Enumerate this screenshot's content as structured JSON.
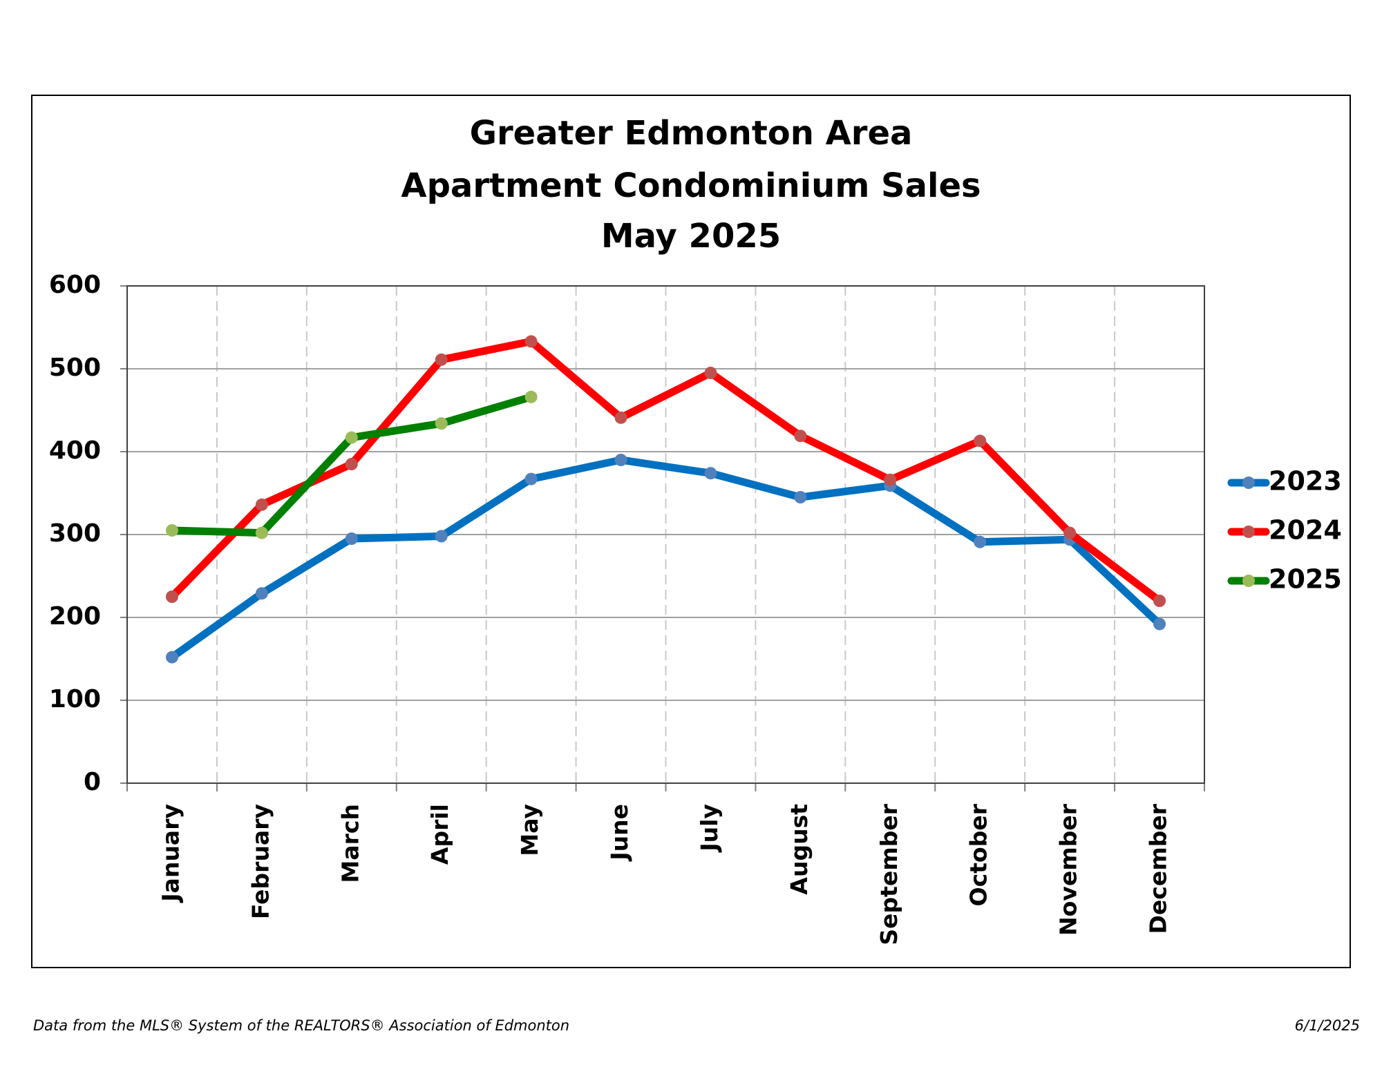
{
  "chart_data": {
    "type": "line",
    "title": [
      "Greater Edmonton Area",
      "Apartment Condominium Sales",
      "May 2025"
    ],
    "categories": [
      "January",
      "February",
      "March",
      "April",
      "May",
      "June",
      "July",
      "August",
      "September",
      "October",
      "November",
      "December"
    ],
    "series": [
      {
        "name": "2023",
        "color": "#0070c0",
        "marker_color": "#4f81bd",
        "values": [
          152,
          229,
          295,
          298,
          367,
          390,
          374,
          345,
          359,
          291,
          294,
          192
        ]
      },
      {
        "name": "2024",
        "color": "#ff0000",
        "marker_color": "#c0504d",
        "values": [
          225,
          336,
          385,
          511,
          533,
          441,
          495,
          419,
          366,
          413,
          302,
          220
        ]
      },
      {
        "name": "2025",
        "color": "#008000",
        "marker_color": "#9bbb59",
        "values": [
          305,
          302,
          417,
          434,
          466,
          null,
          null,
          null,
          null,
          null,
          null,
          null
        ]
      }
    ],
    "ylim": [
      0,
      600
    ],
    "yticks": [
      0,
      100,
      200,
      300,
      400,
      500,
      600
    ],
    "grid": true,
    "legend": "right",
    "footer": {
      "source": "Data from the MLS® System of the REALTORS® Association of Edmonton",
      "date": "6/1/2025"
    }
  }
}
